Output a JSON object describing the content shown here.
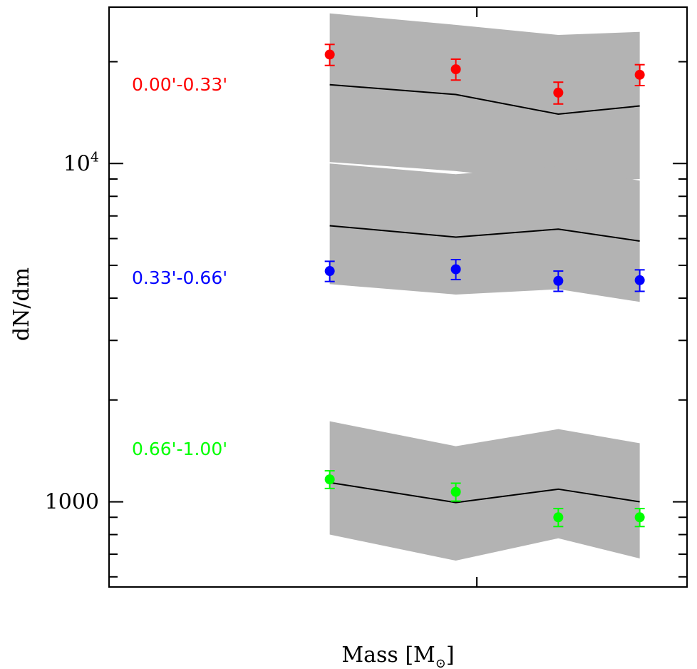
{
  "chart_data": {
    "type": "scatter",
    "title": "",
    "xlabel": "Mass [M",
    "xlabel_sub": "⊙",
    "xlabel_close": "]",
    "ylabel": "dN/dm",
    "yscale": "log",
    "ylim": [
      560,
      29000
    ],
    "xlim": [
      0.3,
      1.4
    ],
    "grid": false,
    "y_tick_labels": [
      {
        "value": 1000,
        "label": "1000"
      },
      {
        "value": 10000,
        "label": "10",
        "sup": "4"
      }
    ],
    "series": [
      {
        "name": "0.00'-0.33'",
        "color": "#ff0000",
        "x": [
          0.72,
          0.96,
          1.155,
          1.31
        ],
        "y": [
          21000,
          19000,
          16200,
          18300
        ],
        "yerr": [
          1500,
          1350,
          1200,
          1300
        ],
        "model": [
          17100,
          16000,
          14000,
          14800
        ],
        "model_lo": [
          10100,
          9500,
          8800,
          9000
        ],
        "model_hi": [
          27800,
          25700,
          24000,
          24500
        ]
      },
      {
        "name": "0.33'-0.66'",
        "color": "#0000ff",
        "x": [
          0.72,
          0.96,
          1.155,
          1.31
        ],
        "y": [
          4810,
          4870,
          4500,
          4520
        ],
        "yerr": [
          330,
          330,
          310,
          330
        ],
        "model": [
          6550,
          6060,
          6400,
          5900
        ],
        "model_lo": [
          4400,
          4100,
          4250,
          3900
        ],
        "model_hi": [
          10000,
          9300,
          9800,
          8900
        ]
      },
      {
        "name": "0.66'-1.00'",
        "color": "#00ff00",
        "x": [
          0.72,
          0.96,
          1.155,
          1.31
        ],
        "y": [
          1165,
          1070,
          900,
          900
        ],
        "yerr": [
          70,
          65,
          55,
          55
        ],
        "model": [
          1140,
          995,
          1090,
          1000
        ],
        "model_lo": [
          800,
          670,
          780,
          680
        ],
        "model_hi": [
          1730,
          1460,
          1640,
          1490
        ]
      }
    ]
  }
}
